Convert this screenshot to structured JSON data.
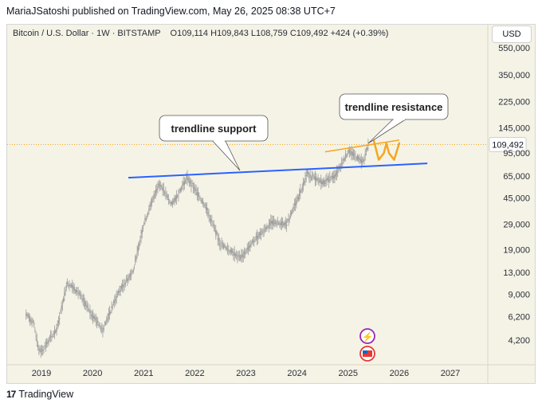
{
  "header": {
    "text": "MariaJSatoshi published on TradingView.com, May 26, 2025 08:38 UTC+7"
  },
  "legend": {
    "symbol": "Bitcoin / U.S. Dollar · 1W · BITSTAMP",
    "open_label": "O",
    "open": "109,114",
    "high_label": "H",
    "high": "109,843",
    "low_label": "L",
    "low": "108,759",
    "close_label": "C",
    "close": "109,492",
    "change": "+424 (+0.39%)"
  },
  "currency": "USD",
  "footer": {
    "logo": "17",
    "brand": "TradingView"
  },
  "colors": {
    "background": "#f5f3e6",
    "candles": "#9e9e9e",
    "support_line": "#2962ff",
    "resistance_line": "#f5a623",
    "price_line": "#f5a623"
  },
  "chart_data": {
    "type": "line",
    "scale": "log",
    "ylim": [
      3000,
      700000
    ],
    "xlim": [
      2018.7,
      2027.6
    ],
    "y_ticks": [
      550000,
      350000,
      225000,
      145000,
      95000,
      65000,
      45000,
      29000,
      19000,
      13000,
      9000,
      6200,
      4200
    ],
    "y_tick_labels": [
      "550,000",
      "350,000",
      "225,000",
      "145,000",
      "95,000",
      "65,000",
      "45,000",
      "29,000",
      "19,000",
      "13,000",
      "9,000",
      "6,200",
      "4,200"
    ],
    "x_ticks": [
      2019,
      2020,
      2021,
      2022,
      2023,
      2024,
      2025,
      2026,
      2027
    ],
    "x_tick_labels": [
      "2019",
      "2020",
      "2021",
      "2022",
      "2023",
      "2024",
      "2025",
      "2026",
      "2027"
    ],
    "current_price": 109492,
    "current_price_label": "109,492",
    "series": [
      {
        "x": [
          2018.7,
          2018.85,
          2018.95,
          2019.0,
          2019.3,
          2019.5,
          2019.7,
          2019.9,
          2020.2,
          2020.5,
          2020.8,
          2021.0,
          2021.3,
          2021.55,
          2021.85,
          2022.2,
          2022.5,
          2022.9,
          2023.2,
          2023.5,
          2023.8,
          2024.0,
          2024.2,
          2024.5,
          2024.75,
          2025.0,
          2025.3,
          2025.4
        ],
        "y": [
          6500,
          5500,
          3600,
          3500,
          5000,
          11000,
          9500,
          7200,
          5000,
          9200,
          13500,
          29000,
          58000,
          40000,
          63000,
          40000,
          21000,
          16500,
          23000,
          30000,
          29000,
          43000,
          67000,
          58000,
          65000,
          98000,
          82000,
          109492
        ]
      }
    ],
    "annotations": [
      {
        "type": "trendline",
        "name": "trendline support",
        "label": "trendline support",
        "x": [
          2020.7,
          2026.55
        ],
        "y": [
          63000,
          80000
        ]
      },
      {
        "type": "trendline",
        "name": "trendline resistance",
        "label": "trendline resistance",
        "x": [
          2024.55,
          2026.0
        ],
        "y": [
          97000,
          118000
        ]
      },
      {
        "type": "projection",
        "x": [
          2025.5,
          2025.6,
          2025.7,
          2025.75,
          2025.8,
          2025.9,
          2026.0
        ],
        "y": [
          118000,
          85000,
          95000,
          112000,
          95000,
          85000,
          112000
        ]
      }
    ]
  }
}
